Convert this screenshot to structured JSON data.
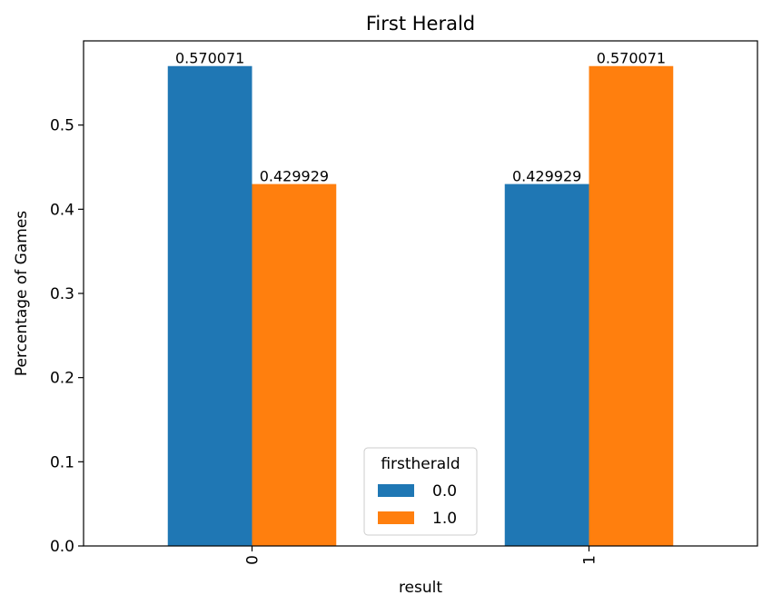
{
  "chart_data": {
    "type": "bar",
    "title": "First Herald",
    "xlabel": "result",
    "ylabel": "Percentage of Games",
    "categories": [
      "0",
      "1"
    ],
    "series": [
      {
        "name": "0.0",
        "values": [
          0.570071,
          0.429929
        ],
        "labels": [
          "0.570071",
          "0.429929"
        ],
        "color": "#1f77b4"
      },
      {
        "name": "1.0",
        "values": [
          0.429929,
          0.570071
        ],
        "labels": [
          "0.429929",
          "0.570071"
        ],
        "color": "#ff7f0e"
      }
    ],
    "ylim": [
      0,
      0.6
    ],
    "yticks": [
      "0.0",
      "0.1",
      "0.2",
      "0.3",
      "0.4",
      "0.5"
    ],
    "x_tick_rotation": "vertical",
    "grid": false,
    "legend": {
      "title": "firstherald",
      "placement": "lower-center"
    }
  }
}
